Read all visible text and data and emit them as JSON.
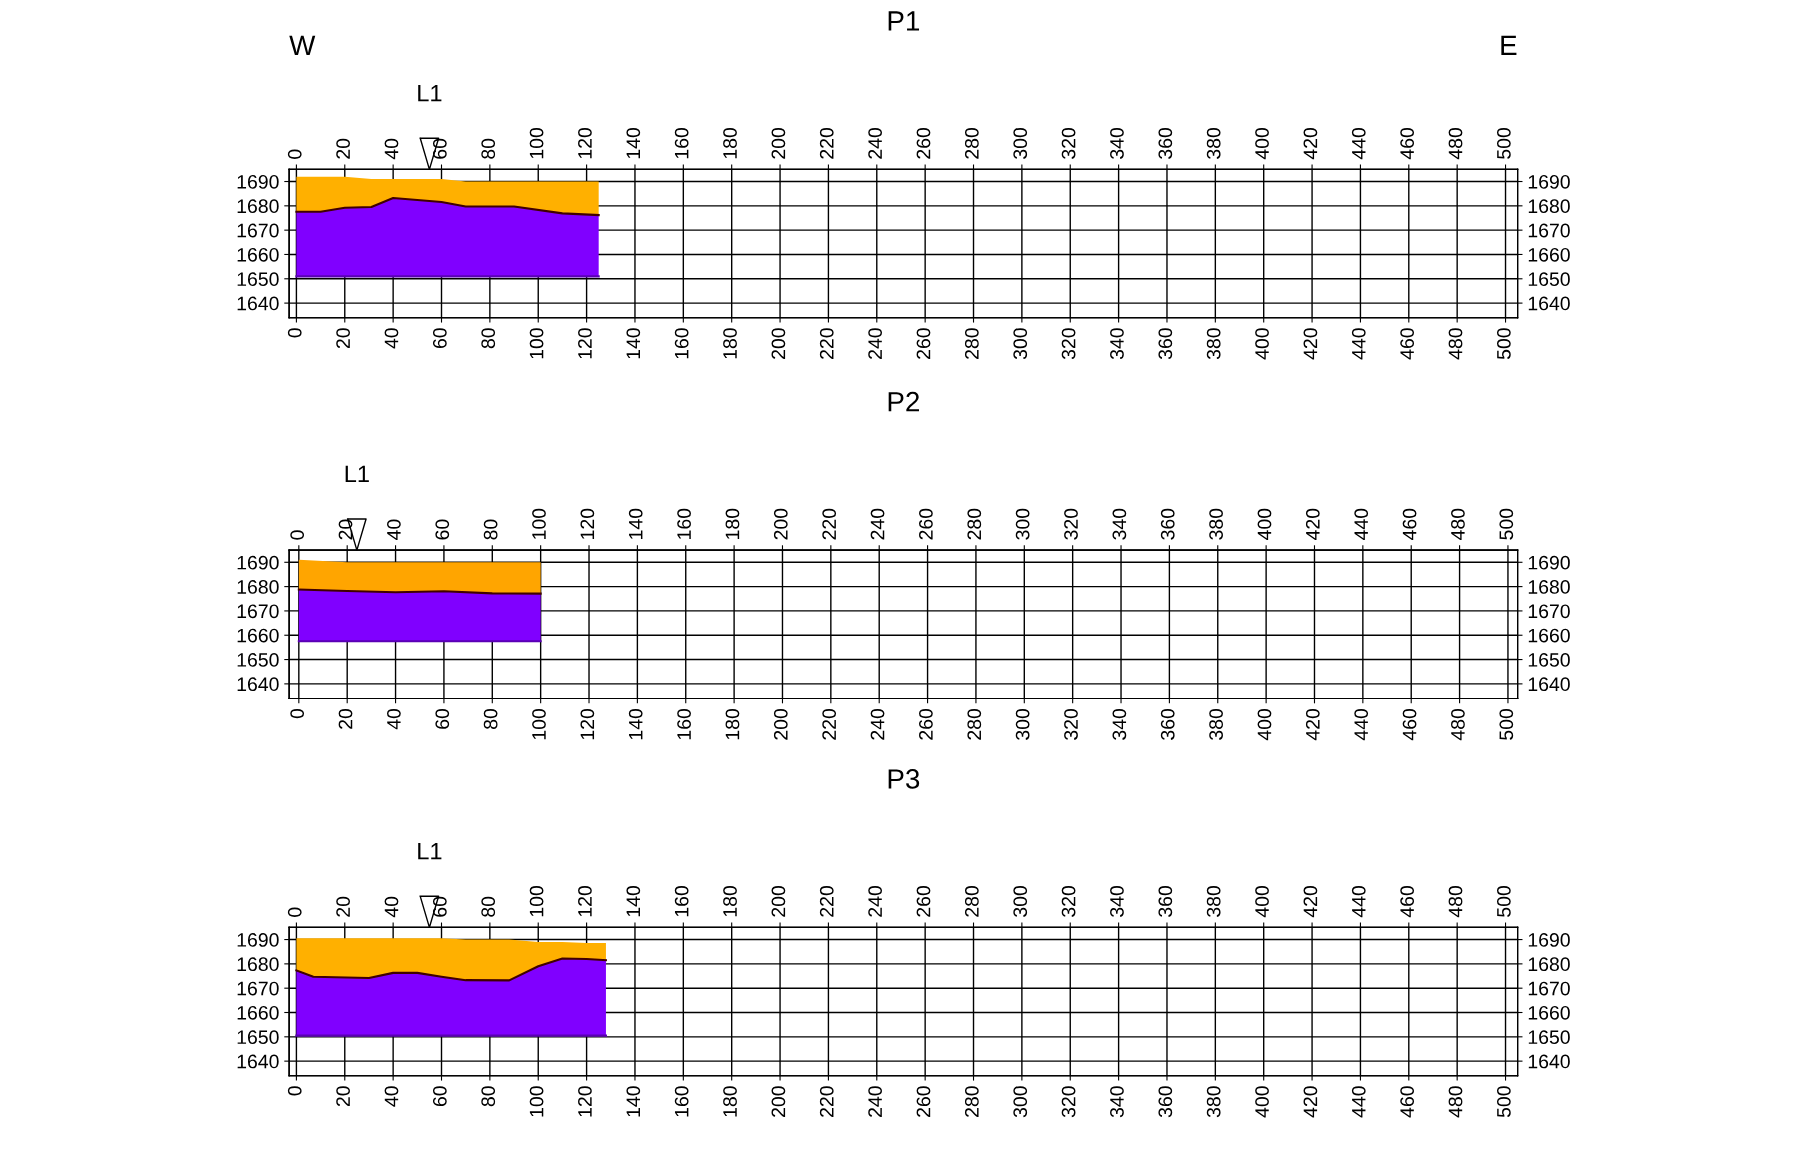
{
  "chart_data": [
    {
      "type": "line",
      "title": "P1",
      "x": [
        0,
        10,
        20,
        31,
        40,
        60,
        70,
        90,
        110,
        125
      ],
      "series": [
        {
          "color": "#5a00b4",
          "values": [
            1651,
            1651,
            1651,
            1651,
            1651,
            1651,
            1651,
            1651,
            1651,
            1651
          ]
        },
        {
          "type": "area",
          "color": "#8000ff",
          "values": [
            1677.6,
            1677.6,
            1679.2,
            1679.5,
            1683.2,
            1681.6,
            1679.7,
            1679.7,
            1676.9,
            1676.2
          ]
        },
        {
          "type": "area",
          "color": "#ffb000",
          "values": [
            1692,
            1692,
            1692,
            1691,
            1691,
            1691,
            1690,
            1690,
            1690,
            1690
          ]
        },
        {
          "color": "#400000",
          "values": [
            1677.6,
            1677.6,
            1679.2,
            1679.5,
            1683.2,
            1681.6,
            1679.7,
            1679.7,
            1676.9,
            1676.2
          ]
        }
      ],
      "annotations": [
        "W",
        "E",
        "L1"
      ],
      "xlim": [
        -3,
        505
      ],
      "xticks": [
        0,
        20,
        40,
        60,
        80,
        100,
        120,
        140,
        160,
        180,
        200,
        220,
        240,
        260,
        280,
        300,
        320,
        340,
        360,
        380,
        400,
        420,
        440,
        460,
        480,
        500
      ],
      "x2lim": [
        -3,
        505
      ],
      "x2ticks": [
        0,
        20,
        40,
        60,
        80,
        100,
        120,
        140,
        160,
        180,
        200,
        220,
        240,
        260,
        280,
        300,
        320,
        340,
        360,
        380,
        400,
        420,
        440,
        460,
        480,
        500
      ],
      "ylim": [
        1634,
        1695
      ],
      "yticks": [
        1640,
        1650,
        1660,
        1670,
        1680,
        1690
      ],
      "y2lim": [
        1634,
        1695
      ],
      "y2ticks": [
        1640,
        1650,
        1660,
        1670,
        1680,
        1690
      ],
      "grid": true
    },
    {
      "type": "line",
      "title": "P2",
      "x": [
        0,
        20,
        40,
        60,
        80,
        100
      ],
      "series": [
        {
          "color": "#5a00b4",
          "values": [
            1657.5,
            1657.5,
            1657.5,
            1657.5,
            1657.5,
            1657.5
          ]
        },
        {
          "type": "area",
          "color": "#8000ff",
          "values": [
            1678.8,
            1678.2,
            1677.7,
            1678.1,
            1677.2,
            1677.1
          ]
        },
        {
          "type": "area",
          "color": "#ffa500",
          "values": [
            1691,
            1690,
            1690,
            1690,
            1690,
            1690
          ]
        },
        {
          "color": "#400000",
          "values": [
            1678.8,
            1678.2,
            1677.7,
            1678.1,
            1677.2,
            1677.1
          ]
        }
      ],
      "annotations": [
        "L1"
      ],
      "xlim": [
        -4,
        504
      ],
      "xticks": [
        0,
        20,
        40,
        60,
        80,
        100,
        120,
        140,
        160,
        180,
        200,
        220,
        240,
        260,
        280,
        300,
        320,
        340,
        360,
        380,
        400,
        420,
        440,
        460,
        480,
        500
      ],
      "x2lim": [
        -4,
        504
      ],
      "x2ticks": [
        0,
        20,
        40,
        60,
        80,
        100,
        120,
        140,
        160,
        180,
        200,
        220,
        240,
        260,
        280,
        300,
        320,
        340,
        360,
        380,
        400,
        420,
        440,
        460,
        480,
        500
      ],
      "ylim": [
        1634,
        1695
      ],
      "yticks": [
        1640,
        1650,
        1660,
        1670,
        1680,
        1690
      ],
      "y2lim": [
        1634,
        1695
      ],
      "y2ticks": [
        1640,
        1650,
        1660,
        1670,
        1680,
        1690
      ],
      "grid": true
    },
    {
      "type": "line",
      "title": "P3",
      "x": [
        0,
        7,
        30,
        40,
        50,
        60,
        70,
        88,
        100,
        110,
        120,
        128
      ],
      "series": [
        {
          "color": "#5a00b4",
          "values": [
            1650.5,
            1650.5,
            1650.5,
            1650.5,
            1650.5,
            1650.5,
            1650.5,
            1650.5,
            1650.5,
            1650.5,
            1650.5,
            1650.5
          ]
        },
        {
          "type": "area",
          "color": "#8000ff",
          "values": [
            1677.3,
            1674.7,
            1674.2,
            1676.3,
            1676.3,
            1674.7,
            1673.3,
            1673.2,
            1679,
            1682.2,
            1682,
            1681.5
          ]
        },
        {
          "type": "area",
          "color": "#ffb000",
          "values": [
            1690.5,
            1690.5,
            1690.5,
            1690.5,
            1690.5,
            1690.5,
            1690,
            1690,
            1689,
            1689,
            1688.6,
            1688.6
          ]
        },
        {
          "color": "#400000",
          "values": [
            1677.3,
            1674.7,
            1674.2,
            1676.3,
            1676.3,
            1674.7,
            1673.3,
            1673.2,
            1679,
            1682.2,
            1682,
            1681.5
          ]
        }
      ],
      "annotations": [
        "L1"
      ],
      "xlim": [
        -3,
        505
      ],
      "xticks": [
        0,
        20,
        40,
        60,
        80,
        100,
        120,
        140,
        160,
        180,
        200,
        220,
        240,
        260,
        280,
        300,
        320,
        340,
        360,
        380,
        400,
        420,
        440,
        460,
        480,
        500
      ],
      "x2lim": [
        -3,
        505
      ],
      "x2ticks": [
        0,
        20,
        40,
        60,
        80,
        100,
        120,
        140,
        160,
        180,
        200,
        220,
        240,
        260,
        280,
        300,
        320,
        340,
        360,
        380,
        400,
        420,
        440,
        460,
        480,
        500
      ],
      "ylim": [
        1634,
        1695
      ],
      "yticks": [
        1640,
        1650,
        1660,
        1670,
        1680,
        1690
      ],
      "y2lim": [
        1634,
        1695
      ],
      "y2ticks": [
        1640,
        1650,
        1660,
        1670,
        1680,
        1690
      ],
      "grid": true
    }
  ]
}
